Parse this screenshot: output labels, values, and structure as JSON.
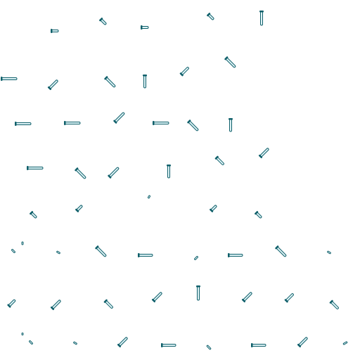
{
  "scene": {
    "background": "#ffffff",
    "line_color": "#0f5f6a",
    "fill_color": "#dff4f7",
    "object": "nail-icon"
  }
}
